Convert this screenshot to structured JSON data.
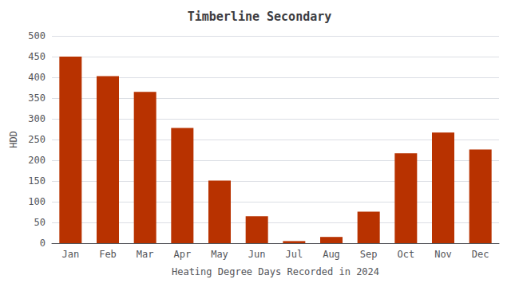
{
  "chart_data": {
    "type": "bar",
    "title": "Timberline Secondary",
    "xlabel": "Heating Degree Days Recorded in 2024",
    "ylabel": "HDD",
    "categories": [
      "Jan",
      "Feb",
      "Mar",
      "Apr",
      "May",
      "Jun",
      "Jul",
      "Aug",
      "Sep",
      "Oct",
      "Nov",
      "Dec"
    ],
    "values": [
      450,
      403,
      365,
      278,
      151,
      65,
      5,
      15,
      76,
      217,
      267,
      226
    ],
    "color": "#b83200",
    "ylim": [
      0,
      500
    ],
    "yticks": [
      0,
      50,
      100,
      150,
      200,
      250,
      300,
      350,
      400,
      450,
      500
    ],
    "grid": true
  }
}
